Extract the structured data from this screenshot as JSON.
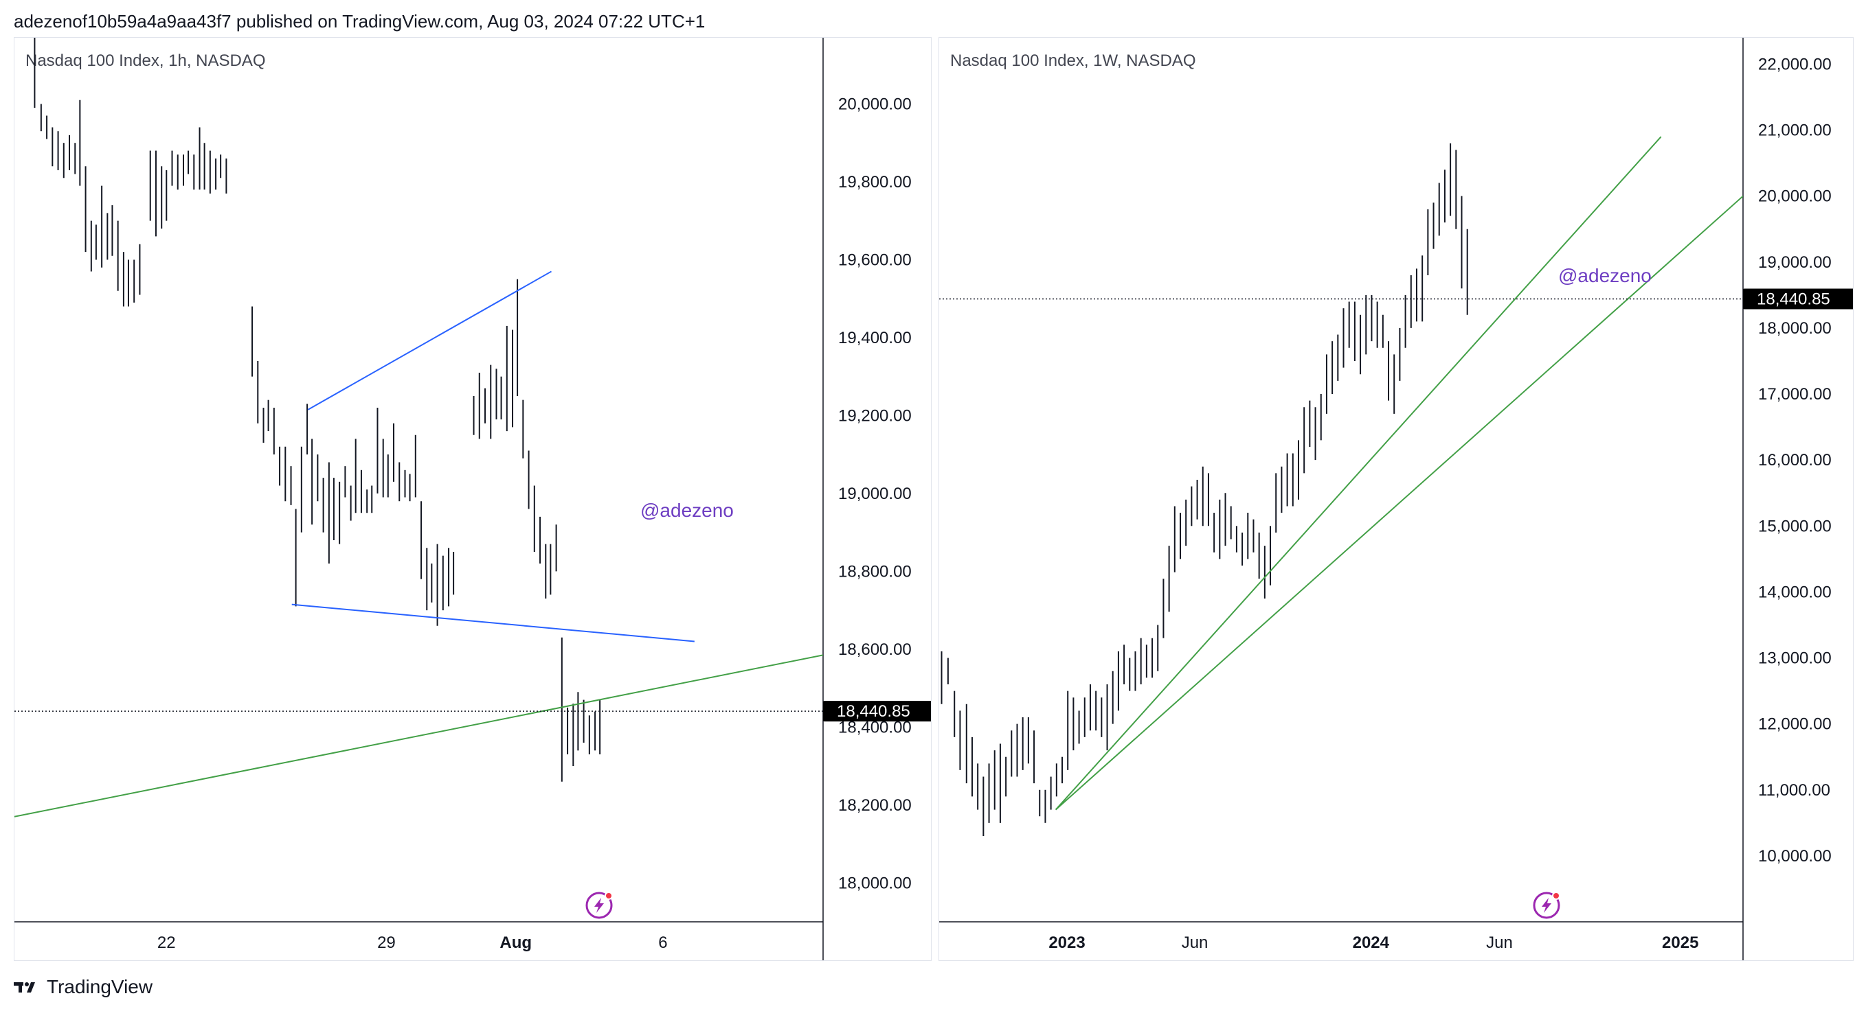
{
  "header": {
    "text": "adezenof10b59a4a9aa43f7 published on TradingView.com, Aug 03, 2024 07:22 UTC+1"
  },
  "footer": {
    "brand": "TradingView",
    "logo_icon": "tradingview-logo-icon"
  },
  "colors": {
    "bar": "#131722",
    "blue_line": "#2962ff",
    "green_line": "#43a047",
    "watermark": "#6e3ec2",
    "label_bg": "#000000",
    "grid_border": "#131722"
  },
  "chart_data": [
    {
      "type": "ohlc",
      "title": "Nasdaq 100 Index, 1h, NASDAQ",
      "watermark": "@adezeno",
      "last_price": "18,440.85",
      "y_tick_labels": [
        "20,000.00",
        "19,800.00",
        "19,600.00",
        "19,400.00",
        "19,200.00",
        "19,000.00",
        "18,800.00",
        "18,600.00",
        "18,400.00",
        "18,200.00",
        "18,000.00"
      ],
      "x_tick_labels": [
        {
          "label": "22",
          "bold": false
        },
        {
          "label": "29",
          "bold": false
        },
        {
          "label": "Aug",
          "bold": true
        },
        {
          "label": "6",
          "bold": false
        }
      ],
      "ylim": [
        17900,
        20170
      ],
      "xlim": [
        0,
        1
      ],
      "y_ticks": [
        20000,
        19800,
        19600,
        19400,
        19200,
        19000,
        18800,
        18600,
        18400,
        18200,
        18000
      ],
      "x_tick_positions": [
        0.188,
        0.46,
        0.62,
        0.802
      ],
      "last_value": 18440.85,
      "bars_hl": [
        [
          0.025,
          20170,
          19990
        ],
        [
          0.033,
          20000,
          19930
        ],
        [
          0.04,
          19970,
          19910
        ],
        [
          0.047,
          19940,
          19840
        ],
        [
          0.054,
          19930,
          19830
        ],
        [
          0.061,
          19900,
          19810
        ],
        [
          0.068,
          19920,
          19830
        ],
        [
          0.075,
          19900,
          19820
        ],
        [
          0.081,
          20010,
          19790
        ],
        [
          0.088,
          19840,
          19620
        ],
        [
          0.095,
          19700,
          19570
        ],
        [
          0.101,
          19690,
          19600
        ],
        [
          0.108,
          19790,
          19580
        ],
        [
          0.115,
          19720,
          19600
        ],
        [
          0.121,
          19740,
          19610
        ],
        [
          0.128,
          19700,
          19520
        ],
        [
          0.135,
          19620,
          19480
        ],
        [
          0.141,
          19600,
          19480
        ],
        [
          0.148,
          19600,
          19490
        ],
        [
          0.155,
          19640,
          19510
        ],
        [
          0.168,
          19880,
          19700
        ],
        [
          0.175,
          19880,
          19660
        ],
        [
          0.182,
          19840,
          19680
        ],
        [
          0.188,
          19830,
          19700
        ],
        [
          0.195,
          19880,
          19790
        ],
        [
          0.202,
          19870,
          19780
        ],
        [
          0.209,
          19870,
          19790
        ],
        [
          0.215,
          19880,
          19820
        ],
        [
          0.222,
          19870,
          19780
        ],
        [
          0.229,
          19940,
          19780
        ],
        [
          0.235,
          19900,
          19780
        ],
        [
          0.242,
          19880,
          19770
        ],
        [
          0.249,
          19860,
          19780
        ],
        [
          0.255,
          19870,
          19810
        ],
        [
          0.262,
          19860,
          19770
        ],
        [
          0.294,
          19480,
          19300
        ],
        [
          0.301,
          19340,
          19180
        ],
        [
          0.308,
          19220,
          19130
        ],
        [
          0.314,
          19240,
          19160
        ],
        [
          0.321,
          19220,
          19100
        ],
        [
          0.328,
          19120,
          19020
        ],
        [
          0.335,
          19120,
          18980
        ],
        [
          0.342,
          19070,
          18970
        ],
        [
          0.348,
          18960,
          18710
        ],
        [
          0.355,
          19120,
          18900
        ],
        [
          0.362,
          19230,
          19100
        ],
        [
          0.368,
          19140,
          18920
        ],
        [
          0.375,
          19100,
          18980
        ],
        [
          0.382,
          19040,
          18900
        ],
        [
          0.389,
          19080,
          18820
        ],
        [
          0.395,
          19040,
          18880
        ],
        [
          0.402,
          19030,
          18870
        ],
        [
          0.409,
          19070,
          18990
        ],
        [
          0.416,
          19020,
          18930
        ],
        [
          0.422,
          19140,
          18950
        ],
        [
          0.429,
          19060,
          18950
        ],
        [
          0.436,
          19010,
          18950
        ],
        [
          0.442,
          19020,
          18950
        ],
        [
          0.449,
          19220,
          19000
        ],
        [
          0.456,
          19140,
          18990
        ],
        [
          0.462,
          19100,
          18990
        ],
        [
          0.469,
          19180,
          19030
        ],
        [
          0.476,
          19080,
          18980
        ],
        [
          0.483,
          19060,
          18990
        ],
        [
          0.489,
          19050,
          18980
        ],
        [
          0.496,
          19150,
          18990
        ],
        [
          0.503,
          18980,
          18780
        ],
        [
          0.51,
          18860,
          18700
        ],
        [
          0.516,
          18820,
          18720
        ],
        [
          0.523,
          18870,
          18660
        ],
        [
          0.53,
          18840,
          18700
        ],
        [
          0.537,
          18860,
          18710
        ],
        [
          0.543,
          18850,
          18740
        ],
        [
          0.568,
          19250,
          19150
        ],
        [
          0.575,
          19310,
          19140
        ],
        [
          0.582,
          19270,
          19180
        ],
        [
          0.589,
          19330,
          19140
        ],
        [
          0.596,
          19320,
          19190
        ],
        [
          0.602,
          19300,
          19190
        ],
        [
          0.609,
          19430,
          19160
        ],
        [
          0.616,
          19420,
          19170
        ],
        [
          0.622,
          19550,
          19250
        ],
        [
          0.629,
          19240,
          19090
        ],
        [
          0.636,
          19110,
          18960
        ],
        [
          0.643,
          19020,
          18850
        ],
        [
          0.65,
          18940,
          18820
        ],
        [
          0.657,
          18870,
          18730
        ],
        [
          0.663,
          18870,
          18740
        ],
        [
          0.67,
          18920,
          18800
        ],
        [
          0.677,
          18630,
          18260
        ],
        [
          0.684,
          18450,
          18330
        ],
        [
          0.691,
          18460,
          18300
        ],
        [
          0.697,
          18490,
          18340
        ],
        [
          0.704,
          18470,
          18360
        ],
        [
          0.711,
          18430,
          18330
        ],
        [
          0.718,
          18440,
          18340
        ],
        [
          0.724,
          18470,
          18330
        ]
      ],
      "trend_lines": [
        {
          "color": "blue",
          "from": [
            0.363,
            19215
          ],
          "to": [
            0.664,
            19570
          ]
        },
        {
          "color": "blue",
          "from": [
            0.343,
            18715
          ],
          "to": [
            0.841,
            18620
          ]
        },
        {
          "color": "green",
          "from": [
            0.0,
            18170
          ],
          "to": [
            1.0,
            18585
          ]
        }
      ]
    },
    {
      "type": "ohlc",
      "title": "Nasdaq 100 Index, 1W, NASDAQ",
      "watermark": "@adezeno",
      "last_price": "18,440.85",
      "y_tick_labels": [
        "22,000.00",
        "21,000.00",
        "20,000.00",
        "19,000.00",
        "18,000.00",
        "17,000.00",
        "16,000.00",
        "15,000.00",
        "14,000.00",
        "13,000.00",
        "12,000.00",
        "11,000.00",
        "10,000.00"
      ],
      "x_tick_labels": [
        {
          "label": "2023",
          "bold": true
        },
        {
          "label": "Jun",
          "bold": false
        },
        {
          "label": "2024",
          "bold": true
        },
        {
          "label": "Jun",
          "bold": false
        },
        {
          "label": "2025",
          "bold": true
        }
      ],
      "ylim": [
        9000,
        22400
      ],
      "xlim": [
        0,
        1
      ],
      "y_ticks": [
        22000,
        21000,
        20000,
        19000,
        18000,
        17000,
        16000,
        15000,
        14000,
        13000,
        12000,
        11000,
        10000
      ],
      "x_tick_positions": [
        0.159,
        0.318,
        0.537,
        0.697,
        0.922
      ],
      "last_value": 18440.85,
      "bars_hl": [
        [
          0.003,
          13100,
          12300
        ],
        [
          0.011,
          13000,
          12600
        ],
        [
          0.019,
          12500,
          11800
        ],
        [
          0.026,
          12200,
          11300
        ],
        [
          0.034,
          12300,
          11100
        ],
        [
          0.041,
          11800,
          10900
        ],
        [
          0.048,
          11400,
          10700
        ],
        [
          0.055,
          11200,
          10300
        ],
        [
          0.062,
          11400,
          10500
        ],
        [
          0.069,
          11600,
          10700
        ],
        [
          0.076,
          11700,
          10500
        ],
        [
          0.083,
          11500,
          10900
        ],
        [
          0.09,
          11900,
          11200
        ],
        [
          0.097,
          12000,
          11200
        ],
        [
          0.104,
          12100,
          11300
        ],
        [
          0.111,
          12100,
          11400
        ],
        [
          0.118,
          11900,
          11100
        ],
        [
          0.125,
          11000,
          10600
        ],
        [
          0.132,
          11000,
          10500
        ],
        [
          0.139,
          11200,
          10700
        ],
        [
          0.146,
          11400,
          10900
        ],
        [
          0.153,
          11500,
          11100
        ],
        [
          0.16,
          12500,
          11300
        ],
        [
          0.167,
          12400,
          11600
        ],
        [
          0.174,
          12200,
          11700
        ],
        [
          0.181,
          12400,
          11800
        ],
        [
          0.188,
          12600,
          11900
        ],
        [
          0.195,
          12500,
          11900
        ],
        [
          0.202,
          12400,
          11800
        ],
        [
          0.209,
          12600,
          11600
        ],
        [
          0.216,
          12800,
          12000
        ],
        [
          0.223,
          13100,
          12200
        ],
        [
          0.23,
          13200,
          12600
        ],
        [
          0.237,
          13000,
          12500
        ],
        [
          0.244,
          13100,
          12500
        ],
        [
          0.251,
          13300,
          12600
        ],
        [
          0.258,
          13200,
          12700
        ],
        [
          0.265,
          13300,
          12700
        ],
        [
          0.272,
          13500,
          12800
        ],
        [
          0.279,
          14200,
          13300
        ],
        [
          0.286,
          14700,
          13700
        ],
        [
          0.293,
          15300,
          14300
        ],
        [
          0.3,
          15200,
          14500
        ],
        [
          0.307,
          15400,
          14700
        ],
        [
          0.314,
          15600,
          15000
        ],
        [
          0.321,
          15700,
          15100
        ],
        [
          0.328,
          15900,
          15000
        ],
        [
          0.335,
          15800,
          15000
        ],
        [
          0.342,
          15200,
          14600
        ],
        [
          0.349,
          15400,
          14500
        ],
        [
          0.356,
          15500,
          14700
        ],
        [
          0.363,
          15300,
          14800
        ],
        [
          0.37,
          15000,
          14600
        ],
        [
          0.377,
          14900,
          14400
        ],
        [
          0.384,
          15200,
          14500
        ],
        [
          0.391,
          15100,
          14600
        ],
        [
          0.398,
          14900,
          14200
        ],
        [
          0.405,
          14700,
          13900
        ],
        [
          0.412,
          15000,
          14100
        ],
        [
          0.419,
          15800,
          14900
        ],
        [
          0.426,
          15900,
          15200
        ],
        [
          0.433,
          16100,
          15300
        ],
        [
          0.44,
          16100,
          15300
        ],
        [
          0.447,
          16300,
          15400
        ],
        [
          0.454,
          16800,
          15800
        ],
        [
          0.461,
          16900,
          16200
        ],
        [
          0.468,
          16800,
          16000
        ],
        [
          0.475,
          17000,
          16300
        ],
        [
          0.482,
          17600,
          16700
        ],
        [
          0.489,
          17800,
          17000
        ],
        [
          0.496,
          17900,
          17200
        ],
        [
          0.503,
          18300,
          17400
        ],
        [
          0.51,
          18400,
          17700
        ],
        [
          0.517,
          18400,
          17500
        ],
        [
          0.524,
          18200,
          17300
        ],
        [
          0.531,
          18500,
          17600
        ],
        [
          0.538,
          18500,
          17800
        ],
        [
          0.545,
          18400,
          17700
        ],
        [
          0.552,
          18200,
          17700
        ],
        [
          0.559,
          17800,
          16900
        ],
        [
          0.566,
          17600,
          16700
        ],
        [
          0.573,
          18000,
          17200
        ],
        [
          0.58,
          18500,
          17700
        ],
        [
          0.587,
          18800,
          18000
        ],
        [
          0.594,
          18900,
          18100
        ],
        [
          0.601,
          19100,
          18100
        ],
        [
          0.608,
          19800,
          18800
        ],
        [
          0.615,
          19900,
          19200
        ],
        [
          0.622,
          20200,
          19400
        ],
        [
          0.629,
          20400,
          19600
        ],
        [
          0.636,
          20800,
          19700
        ],
        [
          0.643,
          20700,
          19500
        ],
        [
          0.65,
          20000,
          18600
        ],
        [
          0.657,
          19500,
          18200
        ]
      ],
      "trend_lines": [
        {
          "color": "green",
          "from": [
            0.145,
            10700
          ],
          "to": [
            0.898,
            20900
          ]
        },
        {
          "color": "green",
          "from": [
            0.145,
            10700
          ],
          "to": [
            1.0,
            20000
          ]
        }
      ]
    }
  ]
}
